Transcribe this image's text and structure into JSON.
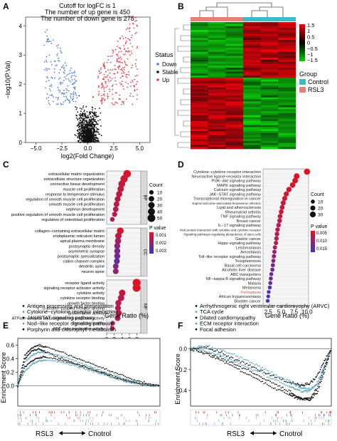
{
  "panel_labels": [
    "A",
    "B",
    "C",
    "D",
    "E",
    "F"
  ],
  "colors": {
    "down": "#4f7fd1",
    "stable": "#111111",
    "up": "#e0424a",
    "heat_high": "#e01818",
    "heat_low": "#14c814",
    "heat_mid": "#000000",
    "group_control": "#3bbcc4",
    "group_rsl3": "#e8807a",
    "pval_low": "#e8101c",
    "pval_high": "#3a36c2",
    "gsea_dot": "#111111",
    "gsea_dot2": "#58a6c0"
  },
  "chart_data": [
    {
      "panel": "A",
      "type": "scatter",
      "title_lines": [
        "Cutoff for logFC is 1",
        "The number of up gene is 450",
        "The number of down gene is 278"
      ],
      "xlabel": "log2(Fold Change)",
      "ylabel": "−log10(P.Val)",
      "xlim": [
        -6,
        6
      ],
      "ylim": [
        0,
        4.3
      ],
      "xticks": [
        -5.0,
        -2.5,
        0.0,
        2.5,
        5.0
      ],
      "xtick_labels": [
        "−5.0",
        "−2.5",
        "0.0",
        "2.5",
        "5.0"
      ],
      "yticks": [
        0,
        1,
        2,
        3,
        4
      ],
      "legend": {
        "title": "Status",
        "entries": [
          "Down",
          "Stable",
          "Up"
        ],
        "position": "right"
      },
      "up_count": 450,
      "down_count": 278
    },
    {
      "panel": "B",
      "type": "heatmap",
      "colorbar_ticks": [
        "1.5",
        "1",
        "0.5",
        "0",
        "−0.5",
        "−1",
        "−1.5"
      ],
      "colorbar_range": [
        -1.5,
        1.5
      ],
      "legend": {
        "title": "Group",
        "entries": [
          "Control",
          "RSL3"
        ],
        "position": "right"
      },
      "columns": 6,
      "groups": [
        "RSL3",
        "RSL3",
        "RSL3",
        "Control",
        "Control",
        "Control"
      ]
    },
    {
      "panel": "C",
      "type": "scatter",
      "xlabel": "Gene Ratio (%)",
      "xlim": [
        0,
        9
      ],
      "xticks": [
        0,
        2,
        4,
        6,
        8
      ],
      "size_legend": {
        "title": "Count",
        "values": [
          10,
          20,
          30,
          40,
          50
        ]
      },
      "color_legend": {
        "title": "P value",
        "ticks": [
          "0.001",
          "0.002",
          "0.003"
        ],
        "range": [
          0.0005,
          0.0035
        ]
      },
      "facets": [
        {
          "name": "BP",
          "terms": [
            {
              "term": "extracellular matrix organization",
              "x": 5.4,
              "count": 48,
              "p": 0.0008
            },
            {
              "term": "extracellular structure organization",
              "x": 4.6,
              "count": 44,
              "p": 0.0009
            },
            {
              "term": "connective tissue development",
              "x": 4.0,
              "count": 36,
              "p": 0.0011
            },
            {
              "term": "muscle cell proliferation",
              "x": 3.7,
              "count": 30,
              "p": 0.0012
            },
            {
              "term": "response to temperature stimulus",
              "x": 3.3,
              "count": 28,
              "p": 0.0012
            },
            {
              "term": "regulation of smooth muscle cell proliferation",
              "x": 2.9,
              "count": 24,
              "p": 0.0013
            },
            {
              "term": "smooth muscle cell proliferation",
              "x": 2.6,
              "count": 22,
              "p": 0.0013
            },
            {
              "term": "nephron development",
              "x": 2.4,
              "count": 20,
              "p": 0.0014
            },
            {
              "term": "positive regulation of smooth muscle cell proliferation",
              "x": 2.1,
              "count": 16,
              "p": 0.0014
            },
            {
              "term": "regulation of osteoblast proliferation",
              "x": 1.5,
              "count": 12,
              "p": 0.0015
            }
          ]
        },
        {
          "name": "CC",
          "terms": [
            {
              "term": "collagen−containing extracellular matrix",
              "x": 3.6,
              "count": 36,
              "p": 0.0009
            },
            {
              "term": "endoplasmic reticulum lumen",
              "x": 3.1,
              "count": 30,
              "p": 0.0012
            },
            {
              "term": "apical plasma membrane",
              "x": 3.0,
              "count": 28,
              "p": 0.0017
            },
            {
              "term": "postsynaptic density",
              "x": 2.8,
              "count": 26,
              "p": 0.0021
            },
            {
              "term": "asymmetric synapse",
              "x": 2.8,
              "count": 26,
              "p": 0.0024
            },
            {
              "term": "postsynaptic specialization",
              "x": 2.8,
              "count": 26,
              "p": 0.0026
            },
            {
              "term": "cation channel complex",
              "x": 2.7,
              "count": 24,
              "p": 0.0028
            },
            {
              "term": "dendritic spine",
              "x": 2.4,
              "count": 22,
              "p": 0.0022
            },
            {
              "term": "neuron spine",
              "x": 2.4,
              "count": 22,
              "p": 0.002
            }
          ]
        },
        {
          "name": "MF",
          "terms": [
            {
              "term": "receptor ligand activity",
              "x": 7.9,
              "count": 52,
              "p": 0.0007
            },
            {
              "term": "signaling receptor activator activity",
              "x": 7.9,
              "count": 52,
              "p": 0.0007
            },
            {
              "term": "cytokine activity",
              "x": 4.1,
              "count": 32,
              "p": 0.0012
            },
            {
              "term": "cytokine receptor binding",
              "x": 3.8,
              "count": 30,
              "p": 0.0013
            },
            {
              "term": "growth factor binding",
              "x": 3.1,
              "count": 26,
              "p": 0.0014
            },
            {
              "term": "G protein−coupled receptor binding",
              "x": 3.0,
              "count": 24,
              "p": 0.0014
            },
            {
              "term": "growth factor activity",
              "x": 3.2,
              "count": 26,
              "p": 0.0013
            },
            {
              "term": "ATPase−coupled transmembrane transporter activity",
              "x": 2.9,
              "count": 22,
              "p": 0.0015
            },
            {
              "term": "fibronectin binding",
              "x": 1.6,
              "count": 12,
              "p": 0.0016
            },
            {
              "term": "ABC−type transporter activity",
              "x": 1.5,
              "count": 12,
              "p": 0.0016
            }
          ]
        }
      ]
    },
    {
      "panel": "D",
      "type": "scatter",
      "xlabel": "Gene Ratio (%)",
      "xlim": [
        1.5,
        10.3
      ],
      "xticks": [
        2.5,
        5.0,
        7.5,
        10.0
      ],
      "xtick_labels": [
        "2.5",
        "5.0",
        "7.5",
        "10.0"
      ],
      "size_legend": {
        "title": "Count",
        "values": [
          10,
          20,
          30
        ]
      },
      "color_legend": {
        "title": "P value",
        "ticks": [
          "0.005",
          "0.010",
          "0.015"
        ],
        "range": [
          0.001,
          0.017
        ]
      },
      "terms": [
        {
          "term": "Cytokine−cytokine receptor interaction",
          "x": 10.0,
          "count": 34,
          "p": 0.001
        },
        {
          "term": "Neuroactive ligand−receptor interaction",
          "x": 8.0,
          "count": 28,
          "p": 0.002
        },
        {
          "term": "PI3K−Akt signaling pathway",
          "x": 7.7,
          "count": 27,
          "p": 0.002
        },
        {
          "term": "MAPK signaling pathway",
          "x": 7.2,
          "count": 25,
          "p": 0.002
        },
        {
          "term": "Calcium signaling pathway",
          "x": 6.5,
          "count": 23,
          "p": 0.003
        },
        {
          "term": "JAK−STAT signaling pathway",
          "x": 6.0,
          "count": 21,
          "p": 0.003
        },
        {
          "term": "Transcriptional misregulation in cancer",
          "x": 5.7,
          "count": 20,
          "p": 0.003
        },
        {
          "term": "Kaposi sarcoma−associated herpesvirus infection",
          "x": 5.4,
          "count": 19,
          "p": 0.004
        },
        {
          "term": "Lipid and atherosclerosis",
          "x": 5.2,
          "count": 18,
          "p": 0.004
        },
        {
          "term": "Rheumatoid arthritis",
          "x": 5.0,
          "count": 17,
          "p": 0.004
        },
        {
          "term": "TNF signaling pathway",
          "x": 4.8,
          "count": 16,
          "p": 0.004
        },
        {
          "term": "Breast cancer",
          "x": 4.7,
          "count": 16,
          "p": 0.005
        },
        {
          "term": "IL−17 signaling pathway",
          "x": 4.5,
          "count": 15,
          "p": 0.005
        },
        {
          "term": "Viral protein interaction with cytokine and cytokine receptor",
          "x": 4.3,
          "count": 14,
          "p": 0.005
        },
        {
          "term": "Signaling pathways regulating pluripotency of stem cells",
          "x": 4.2,
          "count": 14,
          "p": 0.006
        },
        {
          "term": "Gastric cancer",
          "x": 4.1,
          "count": 14,
          "p": 0.006
        },
        {
          "term": "Hippo signaling pathway",
          "x": 4.0,
          "count": 13,
          "p": 0.006
        },
        {
          "term": "Leishmaniasis",
          "x": 3.8,
          "count": 12,
          "p": 0.007
        },
        {
          "term": "Amoebiasis",
          "x": 3.7,
          "count": 12,
          "p": 0.008
        },
        {
          "term": "Toll−like receptor signaling pathway",
          "x": 3.6,
          "count": 12,
          "p": 0.009
        },
        {
          "term": "Toxoplasmosis",
          "x": 3.5,
          "count": 11,
          "p": 0.01
        },
        {
          "term": "Basal cell carcinoma",
          "x": 3.4,
          "count": 11,
          "p": 0.011
        },
        {
          "term": "Alcoholic liver disease",
          "x": 3.3,
          "count": 11,
          "p": 0.012
        },
        {
          "term": "ABC transporters",
          "x": 3.1,
          "count": 10,
          "p": 0.013
        },
        {
          "term": "NF−kappa B signaling pathway",
          "x": 3.0,
          "count": 10,
          "p": 0.012
        },
        {
          "term": "Malaria",
          "x": 2.9,
          "count": 9,
          "p": 0.013
        },
        {
          "term": "Melanoma",
          "x": 2.8,
          "count": 9,
          "p": 0.014
        },
        {
          "term": "Ferroptosis",
          "x": 2.6,
          "count": 8,
          "p": 0.015
        },
        {
          "term": "African trypanosomiasis",
          "x": 2.5,
          "count": 8,
          "p": 0.016
        },
        {
          "term": "Bladder cancer",
          "x": 2.4,
          "count": 8,
          "p": 0.016
        }
      ],
      "highlighted_term": "Ferroptosis"
    },
    {
      "panel": "E",
      "type": "line",
      "ylabel": "Enrichment Score",
      "ylim": [
        -0.3,
        0.7
      ],
      "yticks": [
        0.0,
        0.2,
        0.4,
        0.6
      ],
      "ytick_labels": [
        "0.0",
        "0.2",
        "0.4",
        "0.6"
      ],
      "bottom_label": {
        "left": "RSL3",
        "right": "Cnotrol"
      },
      "legend": {
        "entries": [
          "Antigen processing and presentation",
          "Cytokine−cytokine receptor interaction",
          "JAK/STAT signaling pathway",
          "Nod−like receptor signaling pathway",
          "Porphyrin and chlorophyll metabolism"
        ],
        "position": "top"
      },
      "series": [
        {
          "x": [
            0,
            5,
            10,
            15,
            20,
            30,
            40,
            50,
            60,
            70,
            80,
            90,
            100
          ],
          "values": [
            0,
            0.45,
            0.56,
            0.6,
            0.57,
            0.5,
            0.42,
            0.34,
            0.26,
            0.18,
            0.1,
            0.04,
            0
          ]
        },
        {
          "x": [
            0,
            5,
            10,
            15,
            20,
            30,
            40,
            50,
            60,
            70,
            80,
            90,
            100
          ],
          "values": [
            0,
            0.35,
            0.45,
            0.5,
            0.49,
            0.44,
            0.37,
            0.29,
            0.21,
            0.14,
            0.07,
            0.02,
            0
          ]
        },
        {
          "x": [
            0,
            5,
            10,
            15,
            20,
            30,
            40,
            50,
            60,
            70,
            80,
            90,
            100
          ],
          "values": [
            0,
            0.28,
            0.37,
            0.42,
            0.42,
            0.38,
            0.32,
            0.25,
            0.18,
            0.11,
            0.05,
            0.01,
            0
          ]
        },
        {
          "x": [
            0,
            5,
            10,
            15,
            20,
            30,
            40,
            50,
            60,
            70,
            80,
            90,
            100
          ],
          "values": [
            0,
            0.22,
            0.32,
            0.37,
            0.38,
            0.35,
            0.3,
            0.23,
            0.17,
            0.1,
            0.04,
            0.01,
            0
          ]
        },
        {
          "x": [
            0,
            5,
            10,
            15,
            20,
            30,
            40,
            50,
            60,
            70,
            80,
            90,
            100
          ],
          "values": [
            0,
            0.4,
            0.52,
            0.54,
            0.5,
            0.41,
            0.33,
            0.26,
            0.19,
            0.12,
            0.06,
            0.02,
            0
          ]
        }
      ]
    },
    {
      "panel": "F",
      "type": "line",
      "ylabel": "Enrichment Score",
      "ylim": [
        -0.55,
        0.1
      ],
      "yticks": [
        0.0,
        -0.2,
        -0.4
      ],
      "ytick_labels": [
        "0.0",
        "−0.2",
        "−0.4"
      ],
      "bottom_label": {
        "left": "RSL3",
        "right": "Cnotrol"
      },
      "legend": {
        "entries": [
          "Arrhythmogenic right ventricular cardiomyophy (ARVC)",
          "TCA cycle",
          "Dilated cardiomyopathy",
          "ECM receptor interaction",
          "Focal adhesion"
        ],
        "position": "top"
      },
      "series": [
        {
          "x": [
            0,
            10,
            20,
            30,
            40,
            50,
            60,
            70,
            75,
            80,
            85,
            90,
            95,
            100
          ],
          "values": [
            0,
            -0.03,
            -0.08,
            -0.14,
            -0.2,
            -0.27,
            -0.34,
            -0.41,
            -0.45,
            -0.48,
            -0.49,
            -0.42,
            -0.22,
            0
          ]
        },
        {
          "x": [
            0,
            10,
            20,
            30,
            40,
            50,
            60,
            70,
            75,
            80,
            85,
            90,
            95,
            100
          ],
          "values": [
            0,
            -0.02,
            -0.06,
            -0.11,
            -0.17,
            -0.23,
            -0.3,
            -0.36,
            -0.39,
            -0.41,
            -0.4,
            -0.33,
            -0.17,
            0
          ]
        },
        {
          "x": [
            0,
            10,
            20,
            30,
            40,
            50,
            60,
            70,
            75,
            80,
            85,
            90,
            95,
            100
          ],
          "values": [
            0,
            0.02,
            -0.03,
            -0.09,
            -0.15,
            -0.21,
            -0.27,
            -0.32,
            -0.34,
            -0.35,
            -0.33,
            -0.26,
            -0.12,
            0
          ]
        },
        {
          "x": [
            0,
            10,
            20,
            30,
            40,
            50,
            60,
            70,
            75,
            80,
            85,
            90,
            95,
            100
          ],
          "values": [
            0,
            0.03,
            0.0,
            -0.05,
            -0.11,
            -0.18,
            -0.25,
            -0.31,
            -0.35,
            -0.38,
            -0.39,
            -0.34,
            -0.18,
            0
          ]
        },
        {
          "x": [
            0,
            10,
            20,
            30,
            40,
            50,
            60,
            70,
            75,
            80,
            85,
            90,
            95,
            100
          ],
          "values": [
            0,
            -0.04,
            -0.1,
            -0.17,
            -0.24,
            -0.31,
            -0.38,
            -0.44,
            -0.47,
            -0.49,
            -0.47,
            -0.38,
            -0.19,
            0
          ]
        }
      ]
    }
  ]
}
